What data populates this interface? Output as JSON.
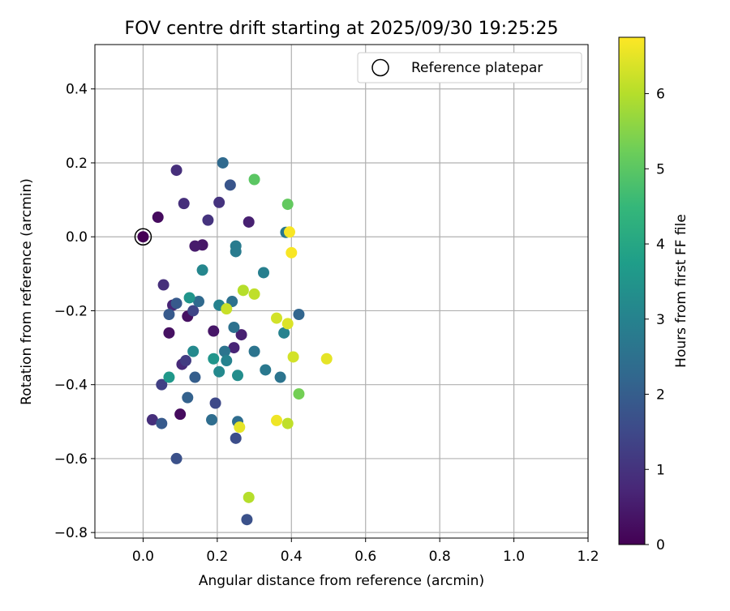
{
  "chart_data": {
    "type": "scatter",
    "title": "FOV centre drift starting at 2025/09/30 19:25:25",
    "xlabel": "Angular distance from reference (arcmin)",
    "ylabel": "Rotation from reference (arcmin)",
    "xlim": [
      -0.13,
      1.2
    ],
    "ylim": [
      -0.815,
      0.52
    ],
    "x_ticks": [
      0.0,
      0.2,
      0.4,
      0.6,
      0.8,
      1.0,
      1.2
    ],
    "x_tick_labels": [
      "0.0",
      "0.2",
      "0.4",
      "0.6",
      "0.8",
      "1.0",
      "1.2"
    ],
    "y_ticks": [
      0.4,
      0.2,
      0.0,
      -0.2,
      -0.4,
      -0.6,
      -0.8
    ],
    "y_tick_labels": [
      "0.4",
      "0.2",
      "0.0",
      "−0.2",
      "−0.4",
      "−0.6",
      "−0.8"
    ],
    "grid": true,
    "legend": {
      "position": "top-right",
      "entries": [
        "Reference platepar"
      ]
    },
    "reference_point": {
      "x": 0.0,
      "y": 0.0
    },
    "colorbar": {
      "label": "Hours from first FF file",
      "range": [
        0,
        6.75
      ],
      "ticks": [
        0,
        1,
        2,
        3,
        4,
        5,
        6
      ],
      "tick_labels": [
        "0",
        "1",
        "2",
        "3",
        "4",
        "5",
        "6"
      ],
      "colormap": "viridis",
      "colors": [
        "#440154",
        "#482878",
        "#3e4989",
        "#31688e",
        "#26828e",
        "#1f9e89",
        "#35b779",
        "#6ece58",
        "#b5de2b",
        "#fde725"
      ]
    },
    "points": [
      {
        "x": 0.0,
        "y": 0.0,
        "h": 0.0
      },
      {
        "x": 0.04,
        "y": 0.053,
        "h": 0.2
      },
      {
        "x": 0.07,
        "y": -0.26,
        "h": 0.3
      },
      {
        "x": 0.1,
        "y": -0.48,
        "h": 0.2
      },
      {
        "x": 0.12,
        "y": -0.215,
        "h": 0.3
      },
      {
        "x": 0.19,
        "y": -0.255,
        "h": 0.4
      },
      {
        "x": 0.16,
        "y": -0.022,
        "h": 0.4
      },
      {
        "x": 0.14,
        "y": -0.025,
        "h": 0.5
      },
      {
        "x": 0.285,
        "y": 0.04,
        "h": 0.6
      },
      {
        "x": 0.265,
        "y": -0.265,
        "h": 0.6
      },
      {
        "x": 0.245,
        "y": -0.3,
        "h": 0.7
      },
      {
        "x": 0.08,
        "y": -0.185,
        "h": 0.7
      },
      {
        "x": 0.105,
        "y": -0.345,
        "h": 0.8
      },
      {
        "x": 0.09,
        "y": 0.18,
        "h": 0.9
      },
      {
        "x": 0.11,
        "y": 0.09,
        "h": 0.9
      },
      {
        "x": 0.055,
        "y": -0.13,
        "h": 0.9
      },
      {
        "x": 0.025,
        "y": -0.495,
        "h": 0.9
      },
      {
        "x": 0.175,
        "y": 0.045,
        "h": 1.0
      },
      {
        "x": 0.205,
        "y": 0.093,
        "h": 1.0
      },
      {
        "x": 0.115,
        "y": -0.335,
        "h": 1.2
      },
      {
        "x": 0.05,
        "y": -0.4,
        "h": 1.3
      },
      {
        "x": 0.135,
        "y": -0.2,
        "h": 1.4
      },
      {
        "x": 0.195,
        "y": -0.45,
        "h": 1.5
      },
      {
        "x": 0.25,
        "y": -0.545,
        "h": 1.6
      },
      {
        "x": 0.28,
        "y": -0.765,
        "h": 1.7
      },
      {
        "x": 0.09,
        "y": -0.6,
        "h": 1.7
      },
      {
        "x": 0.235,
        "y": 0.14,
        "h": 1.8
      },
      {
        "x": 0.07,
        "y": -0.21,
        "h": 1.9
      },
      {
        "x": 0.09,
        "y": -0.18,
        "h": 1.9
      },
      {
        "x": 0.05,
        "y": -0.505,
        "h": 1.9
      },
      {
        "x": 0.14,
        "y": -0.38,
        "h": 2.0
      },
      {
        "x": 0.12,
        "y": -0.435,
        "h": 2.1
      },
      {
        "x": 0.42,
        "y": -0.21,
        "h": 2.2
      },
      {
        "x": 0.215,
        "y": 0.2,
        "h": 2.3
      },
      {
        "x": 0.15,
        "y": -0.175,
        "h": 2.3
      },
      {
        "x": 0.185,
        "y": -0.495,
        "h": 2.4
      },
      {
        "x": 0.255,
        "y": -0.5,
        "h": 2.4
      },
      {
        "x": 0.24,
        "y": -0.175,
        "h": 2.5
      },
      {
        "x": 0.245,
        "y": -0.245,
        "h": 2.5
      },
      {
        "x": 0.22,
        "y": -0.31,
        "h": 2.6
      },
      {
        "x": 0.3,
        "y": -0.31,
        "h": 2.6
      },
      {
        "x": 0.37,
        "y": -0.38,
        "h": 2.6
      },
      {
        "x": 0.33,
        "y": -0.36,
        "h": 2.7
      },
      {
        "x": 0.385,
        "y": 0.012,
        "h": 2.7
      },
      {
        "x": 0.25,
        "y": -0.025,
        "h": 2.8
      },
      {
        "x": 0.25,
        "y": -0.04,
        "h": 2.8
      },
      {
        "x": 0.325,
        "y": -0.097,
        "h": 2.9
      },
      {
        "x": 0.205,
        "y": -0.185,
        "h": 3.0
      },
      {
        "x": 0.225,
        "y": -0.335,
        "h": 3.0
      },
      {
        "x": 0.38,
        "y": -0.26,
        "h": 3.0
      },
      {
        "x": 0.16,
        "y": -0.09,
        "h": 3.1
      },
      {
        "x": 0.205,
        "y": -0.365,
        "h": 3.2
      },
      {
        "x": 0.135,
        "y": -0.31,
        "h": 3.2
      },
      {
        "x": 0.255,
        "y": -0.375,
        "h": 3.3
      },
      {
        "x": 0.19,
        "y": -0.33,
        "h": 3.5
      },
      {
        "x": 0.125,
        "y": -0.165,
        "h": 3.5
      },
      {
        "x": 0.07,
        "y": -0.38,
        "h": 3.6
      },
      {
        "x": 0.3,
        "y": 0.155,
        "h": 5.0
      },
      {
        "x": 0.39,
        "y": 0.088,
        "h": 5.1
      },
      {
        "x": 0.42,
        "y": -0.425,
        "h": 5.3
      },
      {
        "x": 0.27,
        "y": -0.145,
        "h": 6.0
      },
      {
        "x": 0.3,
        "y": -0.155,
        "h": 6.1
      },
      {
        "x": 0.285,
        "y": -0.705,
        "h": 6.0
      },
      {
        "x": 0.39,
        "y": -0.505,
        "h": 6.1
      },
      {
        "x": 0.225,
        "y": -0.195,
        "h": 6.2
      },
      {
        "x": 0.405,
        "y": -0.325,
        "h": 6.3
      },
      {
        "x": 0.36,
        "y": -0.22,
        "h": 6.3
      },
      {
        "x": 0.39,
        "y": -0.235,
        "h": 6.4
      },
      {
        "x": 0.26,
        "y": -0.515,
        "h": 6.5
      },
      {
        "x": 0.495,
        "y": -0.33,
        "h": 6.5
      },
      {
        "x": 0.36,
        "y": -0.497,
        "h": 6.6
      },
      {
        "x": 0.395,
        "y": 0.013,
        "h": 6.7
      },
      {
        "x": 0.4,
        "y": -0.043,
        "h": 6.7
      }
    ]
  }
}
